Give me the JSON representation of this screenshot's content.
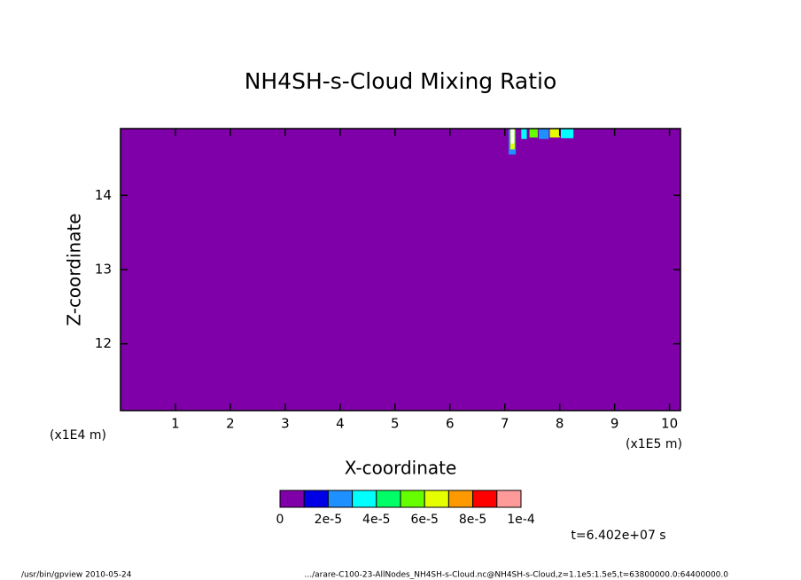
{
  "chart_data": {
    "type": "contour",
    "title": "NH4SH-s-Cloud Mixing Ratio",
    "xlabel": "X-coordinate",
    "ylabel": "Z-coordinate",
    "ylabel_scale": "(x1E4 m)",
    "xlabel_scale": "(x1E5 m)",
    "xlim": [
      0,
      10.2
    ],
    "ylim": [
      11.1,
      14.9
    ],
    "xticks": [
      1,
      2,
      3,
      4,
      5,
      6,
      7,
      8,
      9,
      10
    ],
    "yticks": [
      12,
      13,
      14
    ],
    "levels": [
      0,
      1e-05,
      2e-05,
      3e-05,
      4e-05,
      5e-05,
      6e-05,
      7e-05,
      8e-05,
      9e-05,
      0.0001
    ],
    "level_colors": [
      "#7f00a8",
      "#0000e6",
      "#1e90ff",
      "#00ffff",
      "#00ff66",
      "#66ff00",
      "#e6ff00",
      "#ff9900",
      "#ff0000",
      "#ff9a9a"
    ],
    "over_color": "#ffffff",
    "colorbar_ticks": [
      0,
      {
        "value": 2e-05,
        "label": "2e-5"
      },
      {
        "value": 4e-05,
        "label": "4e-5"
      },
      {
        "value": 6e-05,
        "label": "6e-5"
      },
      {
        "value": 8e-05,
        "label": "8e-5"
      },
      {
        "value": 0.0001,
        "label": "1e-4"
      }
    ],
    "patches": [
      {
        "x": [
          7.07,
          7.2
        ],
        "z": [
          14.55,
          14.9
        ],
        "value": 2e-05
      },
      {
        "x": [
          7.1,
          7.18
        ],
        "z": [
          14.62,
          14.9
        ],
        "value": 6e-05
      },
      {
        "x": [
          7.11,
          7.17
        ],
        "z": [
          14.7,
          14.9
        ],
        "value": 0.00012
      },
      {
        "x": [
          7.3,
          7.4
        ],
        "z": [
          14.76,
          14.9
        ],
        "value": 3e-05
      },
      {
        "x": [
          7.45,
          7.6
        ],
        "z": [
          14.78,
          14.9
        ],
        "value": 5e-05
      },
      {
        "x": [
          7.62,
          7.8
        ],
        "z": [
          14.76,
          14.9
        ],
        "value": 2e-05
      },
      {
        "x": [
          7.82,
          8.0
        ],
        "z": [
          14.78,
          14.9
        ],
        "value": 6e-05
      },
      {
        "x": [
          8.02,
          8.25
        ],
        "z": [
          14.77,
          14.9
        ],
        "value": 3e-05
      }
    ],
    "time_label": "t=6.402e+07 s",
    "footer_left": "/usr/bin/gpview  2010-05-24",
    "footer_right": ".../arare-C100-23-AllNodes_NH4SH-s-Cloud.nc@NH4SH-s-Cloud,z=1.1e5:1.5e5,t=63800000.0:64400000.0"
  }
}
